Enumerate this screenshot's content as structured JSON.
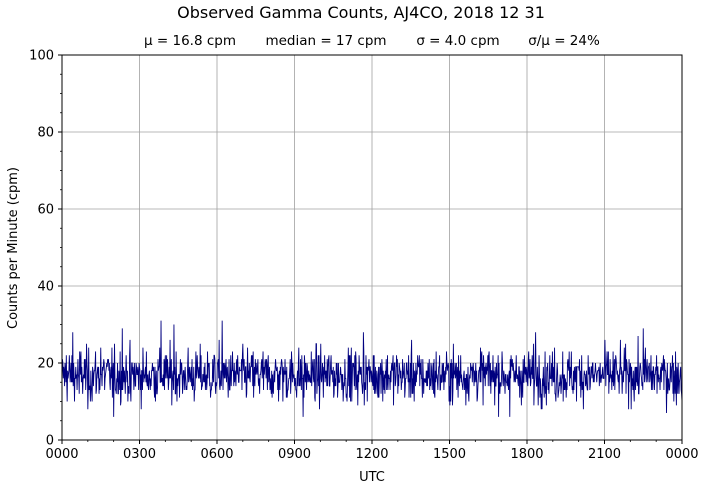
{
  "chart_data": {
    "type": "line",
    "title": "Observed Gamma Counts, AJ4CO, 2018 12 31",
    "stats": {
      "mean": "μ = 16.8 cpm",
      "median": "median = 17 cpm",
      "sigma": "σ = 4.0 cpm",
      "cv": "σ/μ = 24%"
    },
    "xlabel": "UTC",
    "ylabel": "Counts per Minute (cpm)",
    "x_ticks": [
      "0000",
      "0300",
      "0600",
      "0900",
      "1200",
      "1500",
      "1800",
      "2100",
      "0000"
    ],
    "y_ticks": [
      "0",
      "20",
      "40",
      "60",
      "80",
      "100"
    ],
    "xlim_minutes": [
      0,
      1440
    ],
    "ylim": [
      0,
      100
    ],
    "grid": true,
    "line_color": "#000080",
    "series": [
      {
        "x_unit": "minutes after 0000 UTC",
        "mean": 16.8,
        "sigma": 4.0,
        "values_sample": [
          {
            "x": 0,
            "y": 16
          },
          {
            "x": 10,
            "y": 22
          },
          {
            "x": 25,
            "y": 28
          },
          {
            "x": 40,
            "y": 12
          },
          {
            "x": 60,
            "y": 8
          },
          {
            "x": 90,
            "y": 24
          },
          {
            "x": 120,
            "y": 6
          },
          {
            "x": 140,
            "y": 29
          },
          {
            "x": 160,
            "y": 10
          },
          {
            "x": 230,
            "y": 31
          },
          {
            "x": 260,
            "y": 30
          },
          {
            "x": 280,
            "y": 12
          },
          {
            "x": 372,
            "y": 31
          },
          {
            "x": 480,
            "y": 15
          },
          {
            "x": 560,
            "y": 6
          },
          {
            "x": 600,
            "y": 19
          },
          {
            "x": 700,
            "y": 28
          },
          {
            "x": 840,
            "y": 12
          },
          {
            "x": 960,
            "y": 16
          },
          {
            "x": 1040,
            "y": 6
          },
          {
            "x": 1100,
            "y": 28
          },
          {
            "x": 1260,
            "y": 20
          },
          {
            "x": 1350,
            "y": 29
          },
          {
            "x": 1440,
            "y": 10
          }
        ]
      }
    ]
  }
}
